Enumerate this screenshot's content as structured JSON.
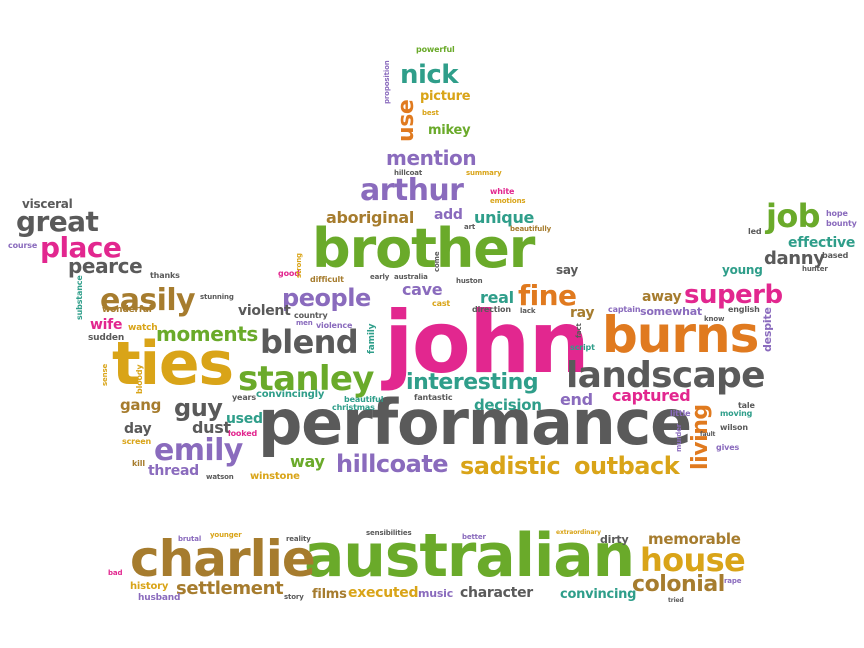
{
  "colors": {
    "purple": "#8a6bbd",
    "gray": "#5a5a5a",
    "green": "#6aaa2a",
    "pink": "#e2278f",
    "orange": "#e07a1f",
    "gold": "#d9a418",
    "brown": "#a67c2e",
    "teal": "#2f9e8a"
  },
  "words": [
    {
      "text": "john",
      "color": "pink"
    },
    {
      "text": "performance",
      "color": "gray"
    },
    {
      "text": "australian",
      "color": "green"
    },
    {
      "text": "charlie",
      "color": "brown"
    },
    {
      "text": "brother",
      "color": "green"
    },
    {
      "text": "burns",
      "color": "orange"
    },
    {
      "text": "ties",
      "color": "gold"
    },
    {
      "text": "landscape",
      "color": "gray"
    },
    {
      "text": "house",
      "color": "gold"
    },
    {
      "text": "stanley",
      "color": "green"
    },
    {
      "text": "arthur",
      "color": "purple"
    },
    {
      "text": "blend",
      "color": "gray"
    },
    {
      "text": "emily",
      "color": "purple"
    },
    {
      "text": "hillcoate",
      "color": "purple"
    },
    {
      "text": "interesting",
      "color": "teal"
    },
    {
      "text": "easily",
      "color": "brown"
    },
    {
      "text": "outback",
      "color": "gold"
    },
    {
      "text": "sadistic",
      "color": "gold"
    },
    {
      "text": "great",
      "color": "gray"
    },
    {
      "text": "place",
      "color": "pink"
    },
    {
      "text": "superb",
      "color": "pink"
    },
    {
      "text": "fine",
      "color": "orange"
    },
    {
      "text": "job",
      "color": "green"
    },
    {
      "text": "nick",
      "color": "teal"
    },
    {
      "text": "people",
      "color": "purple"
    },
    {
      "text": "settlement",
      "color": "brown"
    },
    {
      "text": "colonial",
      "color": "brown"
    },
    {
      "text": "mention",
      "color": "purple"
    },
    {
      "text": "living",
      "color": "orange"
    },
    {
      "text": "guy",
      "color": "gray"
    },
    {
      "text": "pearce",
      "color": "gray"
    },
    {
      "text": "moments",
      "color": "green"
    },
    {
      "text": "danny",
      "color": "gray"
    },
    {
      "text": "aboriginal",
      "color": "brown"
    },
    {
      "text": "captured",
      "color": "pink"
    },
    {
      "text": "decision",
      "color": "teal"
    },
    {
      "text": "memorable",
      "color": "brown"
    },
    {
      "text": "unique",
      "color": "teal"
    },
    {
      "text": "real",
      "color": "teal"
    },
    {
      "text": "cave",
      "color": "purple"
    },
    {
      "text": "effective",
      "color": "teal"
    },
    {
      "text": "use",
      "color": "orange"
    },
    {
      "text": "dust",
      "color": "gray"
    },
    {
      "text": "end",
      "color": "purple"
    },
    {
      "text": "executed",
      "color": "gold"
    },
    {
      "text": "character",
      "color": "gray"
    },
    {
      "text": "convincing",
      "color": "teal"
    },
    {
      "text": "films",
      "color": "brown"
    },
    {
      "text": "gang",
      "color": "brown"
    },
    {
      "text": "way",
      "color": "green"
    },
    {
      "text": "wife",
      "color": "pink"
    },
    {
      "text": "thread",
      "color": "purple"
    },
    {
      "text": "violent",
      "color": "gray"
    },
    {
      "text": "used",
      "color": "teal"
    },
    {
      "text": "day",
      "color": "gray"
    },
    {
      "text": "picture",
      "color": "gold"
    },
    {
      "text": "mikey",
      "color": "green"
    },
    {
      "text": "away",
      "color": "brown"
    },
    {
      "text": "ray",
      "color": "brown"
    },
    {
      "text": "add",
      "color": "purple"
    },
    {
      "text": "somewhat",
      "color": "purple"
    },
    {
      "text": "young",
      "color": "teal"
    },
    {
      "text": "visceral",
      "color": "gray"
    },
    {
      "text": "say",
      "color": "gray"
    },
    {
      "text": "music",
      "color": "purple"
    },
    {
      "text": "dirty",
      "color": "gray"
    },
    {
      "text": "winstone",
      "color": "gold"
    },
    {
      "text": "convincingly",
      "color": "teal"
    },
    {
      "text": "history",
      "color": "gold"
    },
    {
      "text": "husband",
      "color": "purple"
    },
    {
      "text": "wonderful",
      "color": "brown"
    },
    {
      "text": "watch",
      "color": "gold"
    },
    {
      "text": "sudden",
      "color": "gray"
    },
    {
      "text": "substance",
      "color": "teal"
    },
    {
      "text": "bloody",
      "color": "gold"
    },
    {
      "text": "sense",
      "color": "gold"
    },
    {
      "text": "screen",
      "color": "gold"
    },
    {
      "text": "kill",
      "color": "brown"
    },
    {
      "text": "years",
      "color": "gray"
    },
    {
      "text": "looked",
      "color": "pink"
    },
    {
      "text": "family",
      "color": "teal"
    },
    {
      "text": "beautiful",
      "color": "teal"
    },
    {
      "text": "christmas",
      "color": "teal"
    },
    {
      "text": "violence",
      "color": "purple"
    },
    {
      "text": "country",
      "color": "gray"
    },
    {
      "text": "men",
      "color": "purple"
    },
    {
      "text": "good",
      "color": "pink"
    },
    {
      "text": "difficult",
      "color": "brown"
    },
    {
      "text": "strong",
      "color": "gold"
    },
    {
      "text": "thanks",
      "color": "gray"
    },
    {
      "text": "stunning",
      "color": "gray"
    },
    {
      "text": "course",
      "color": "purple"
    },
    {
      "text": "early",
      "color": "gray"
    },
    {
      "text": "australia",
      "color": "gray"
    },
    {
      "text": "huston",
      "color": "gray"
    },
    {
      "text": "cast",
      "color": "gold"
    },
    {
      "text": "direction",
      "color": "gray"
    },
    {
      "text": "lack",
      "color": "gray"
    },
    {
      "text": "fantastic",
      "color": "gray"
    },
    {
      "text": "captain",
      "color": "purple"
    },
    {
      "text": "english",
      "color": "gray"
    },
    {
      "text": "know",
      "color": "gray"
    },
    {
      "text": "despite",
      "color": "purple"
    },
    {
      "text": "tale",
      "color": "gray"
    },
    {
      "text": "moving",
      "color": "teal"
    },
    {
      "text": "wilson",
      "color": "gray"
    },
    {
      "text": "little",
      "color": "purple"
    },
    {
      "text": "murder",
      "color": "purple"
    },
    {
      "text": "gives",
      "color": "purple"
    },
    {
      "text": "hope",
      "color": "purple"
    },
    {
      "text": "bounty",
      "color": "purple"
    },
    {
      "text": "led",
      "color": "gray"
    },
    {
      "text": "hunter",
      "color": "gray"
    },
    {
      "text": "based",
      "color": "gray"
    },
    {
      "text": "powerful",
      "color": "green"
    },
    {
      "text": "proposition",
      "color": "purple"
    },
    {
      "text": "best",
      "color": "gold"
    },
    {
      "text": "hillcoat",
      "color": "gray"
    },
    {
      "text": "summary",
      "color": "gold"
    },
    {
      "text": "white",
      "color": "pink"
    },
    {
      "text": "emotions",
      "color": "gold"
    },
    {
      "text": "art",
      "color": "gray"
    },
    {
      "text": "beautifully",
      "color": "brown"
    },
    {
      "text": "come",
      "color": "gray"
    },
    {
      "text": "fact",
      "color": "gray"
    },
    {
      "text": "script",
      "color": "teal"
    },
    {
      "text": "watson",
      "color": "gray"
    },
    {
      "text": "brutal",
      "color": "purple"
    },
    {
      "text": "younger",
      "color": "gold"
    },
    {
      "text": "reality",
      "color": "gray"
    },
    {
      "text": "sensibilities",
      "color": "gray"
    },
    {
      "text": "better",
      "color": "purple"
    },
    {
      "text": "extraordinary",
      "color": "gold"
    },
    {
      "text": "bad",
      "color": "pink"
    },
    {
      "text": "story",
      "color": "gray"
    },
    {
      "text": "rape",
      "color": "purple"
    },
    {
      "text": "tried",
      "color": "gray"
    },
    {
      "text": "fault",
      "color": "gray"
    }
  ]
}
